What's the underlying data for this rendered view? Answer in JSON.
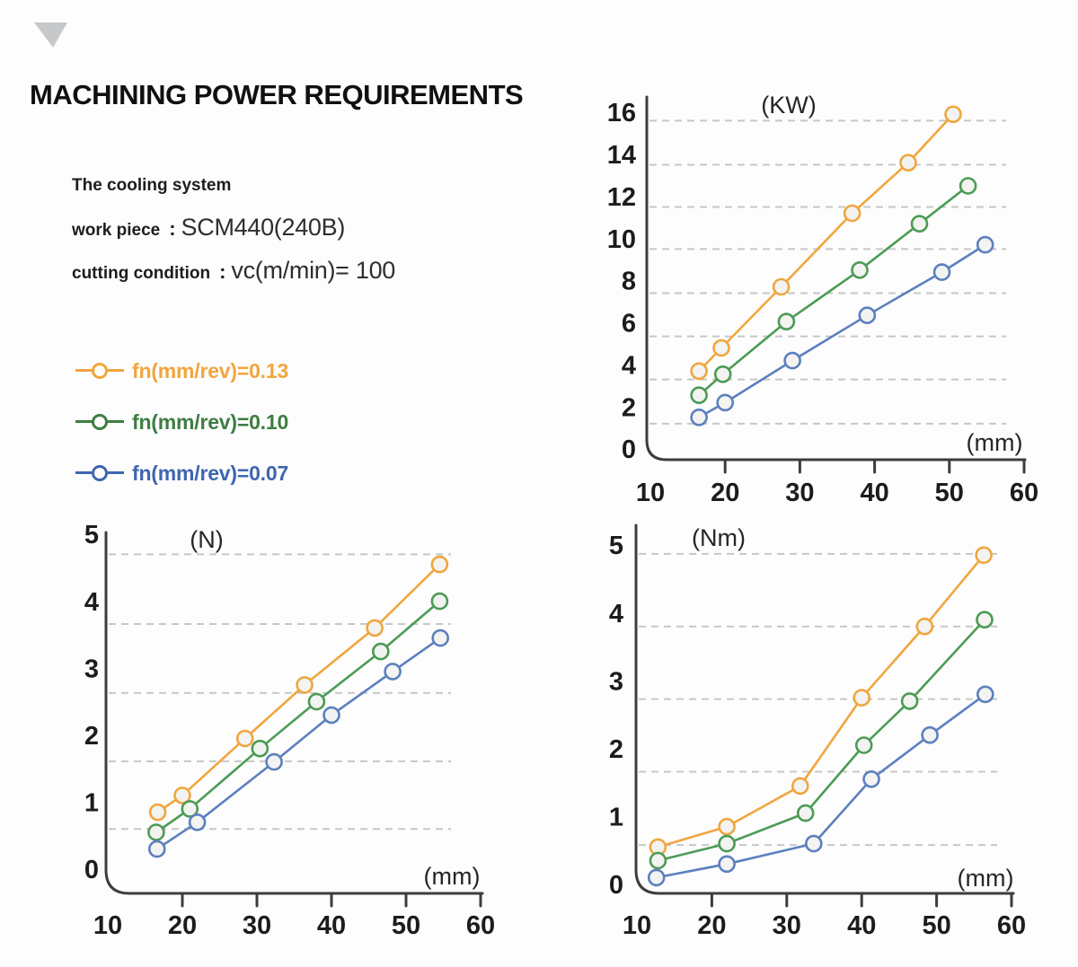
{
  "page": {
    "title": "MACHINING POWER REQUIREMENTS",
    "info": {
      "cooling": "The cooling system",
      "work_piece_label": "work piece",
      "work_piece_colon": ":",
      "work_piece_value": "SCM440(240B)",
      "cutting_label": "cutting condition",
      "cutting_colon": ":",
      "cutting_value": "vc(m/min)= 100"
    },
    "legend": {
      "items": [
        {
          "label": "fn(mm/rev)=0.13",
          "color": "#F2A53C"
        },
        {
          "label": "fn(mm/rev)=0.10",
          "color": "#3E7D42"
        },
        {
          "label": "fn(mm/rev)=0.07",
          "color": "#3E66B0"
        }
      ]
    }
  },
  "chart_data": [
    {
      "id": "power",
      "type": "line",
      "title": "(KW)",
      "xlabel": "(mm)",
      "ylabel": "",
      "xlim": [
        10,
        60
      ],
      "ylim": [
        0,
        16
      ],
      "x_ticks": [
        10,
        20,
        30,
        40,
        50,
        60
      ],
      "y_ticks": [
        0,
        2,
        4,
        6,
        8,
        10,
        12,
        14,
        16
      ],
      "x_tick_marks": [
        20,
        30,
        40,
        50,
        60
      ],
      "grid": "dashed horizontal",
      "legend_position": "none",
      "series": [
        {
          "name": "fn(mm/rev)=0.13",
          "color": "#F0A63E",
          "points": [
            [
              16.5,
              3.7
            ],
            [
              19.5,
              4.8
            ],
            [
              27.5,
              7.7
            ],
            [
              37,
              11.2
            ],
            [
              44.5,
              13.6
            ],
            [
              50.5,
              15.9
            ]
          ]
        },
        {
          "name": "fn(mm/rev)=0.10",
          "color": "#4C9B55",
          "points": [
            [
              16.5,
              2.55
            ],
            [
              19.7,
              3.55
            ],
            [
              28.2,
              6.05
            ],
            [
              38,
              8.5
            ],
            [
              46,
              10.7
            ],
            [
              52.5,
              12.5
            ]
          ]
        },
        {
          "name": "fn(mm/rev)=0.07",
          "color": "#5C80BE",
          "points": [
            [
              16.5,
              1.5
            ],
            [
              20,
              2.2
            ],
            [
              29,
              4.2
            ],
            [
              39,
              6.35
            ],
            [
              49,
              8.4
            ],
            [
              54.8,
              9.7
            ]
          ]
        }
      ]
    },
    {
      "id": "force",
      "type": "line",
      "title": "(N)",
      "xlabel": "(mm)",
      "ylabel": "",
      "xlim": [
        10,
        60
      ],
      "ylim": [
        0,
        5
      ],
      "x_ticks": [
        10,
        20,
        30,
        40,
        50,
        60
      ],
      "y_ticks": [
        0,
        1,
        2,
        3,
        4,
        5
      ],
      "x_tick_marks": [
        20,
        30,
        40,
        50,
        60
      ],
      "grid": "dashed horizontal",
      "legend_position": "none",
      "series": [
        {
          "name": "fn(mm/rev)=0.13",
          "color": "#F0A63E",
          "points": [
            [
              16.7,
              0.85
            ],
            [
              20,
              1.1
            ],
            [
              28.4,
              1.95
            ],
            [
              36.4,
              2.75
            ],
            [
              45.8,
              3.6
            ],
            [
              54.5,
              4.55
            ]
          ]
        },
        {
          "name": "fn(mm/rev)=0.10",
          "color": "#4C9B55",
          "points": [
            [
              16.5,
              0.55
            ],
            [
              21,
              0.9
            ],
            [
              30.4,
              1.8
            ],
            [
              38,
              2.5
            ],
            [
              46.6,
              3.25
            ],
            [
              54.5,
              4.0
            ]
          ]
        },
        {
          "name": "fn(mm/rev)=0.07",
          "color": "#5C80BE",
          "points": [
            [
              16.6,
              0.3
            ],
            [
              22,
              0.7
            ],
            [
              32.3,
              1.6
            ],
            [
              40,
              2.3
            ],
            [
              48.2,
              2.95
            ],
            [
              54.6,
              3.45
            ]
          ]
        }
      ]
    },
    {
      "id": "torque",
      "type": "line",
      "title": "(Nm)",
      "xlabel": "(mm)",
      "ylabel": "",
      "xlim": [
        10,
        60
      ],
      "ylim": [
        0,
        5
      ],
      "x_ticks": [
        10,
        20,
        30,
        40,
        50,
        60
      ],
      "y_ticks": [
        0,
        1,
        2,
        3,
        4,
        5
      ],
      "x_tick_marks": [
        20,
        30,
        40,
        50,
        60
      ],
      "grid": "dashed horizontal",
      "legend_position": "none",
      "series": [
        {
          "name": "fn(mm/rev)=0.13",
          "color": "#F0A63E",
          "points": [
            [
              12.8,
              0.55
            ],
            [
              22,
              0.85
            ],
            [
              31.8,
              1.45
            ],
            [
              40,
              2.75
            ],
            [
              48.4,
              3.8
            ],
            [
              56.3,
              4.85
            ]
          ]
        },
        {
          "name": "fn(mm/rev)=0.10",
          "color": "#4C9B55",
          "points": [
            [
              12.8,
              0.35
            ],
            [
              22,
              0.6
            ],
            [
              32.5,
              1.05
            ],
            [
              40.3,
              2.05
            ],
            [
              46.4,
              2.7
            ],
            [
              56.4,
              3.9
            ]
          ]
        },
        {
          "name": "fn(mm/rev)=0.07",
          "color": "#5C80BE",
          "points": [
            [
              12.6,
              0.1
            ],
            [
              22,
              0.3
            ],
            [
              33.6,
              0.6
            ],
            [
              41.3,
              1.55
            ],
            [
              49.1,
              2.2
            ],
            [
              56.5,
              2.8
            ]
          ]
        }
      ]
    }
  ]
}
